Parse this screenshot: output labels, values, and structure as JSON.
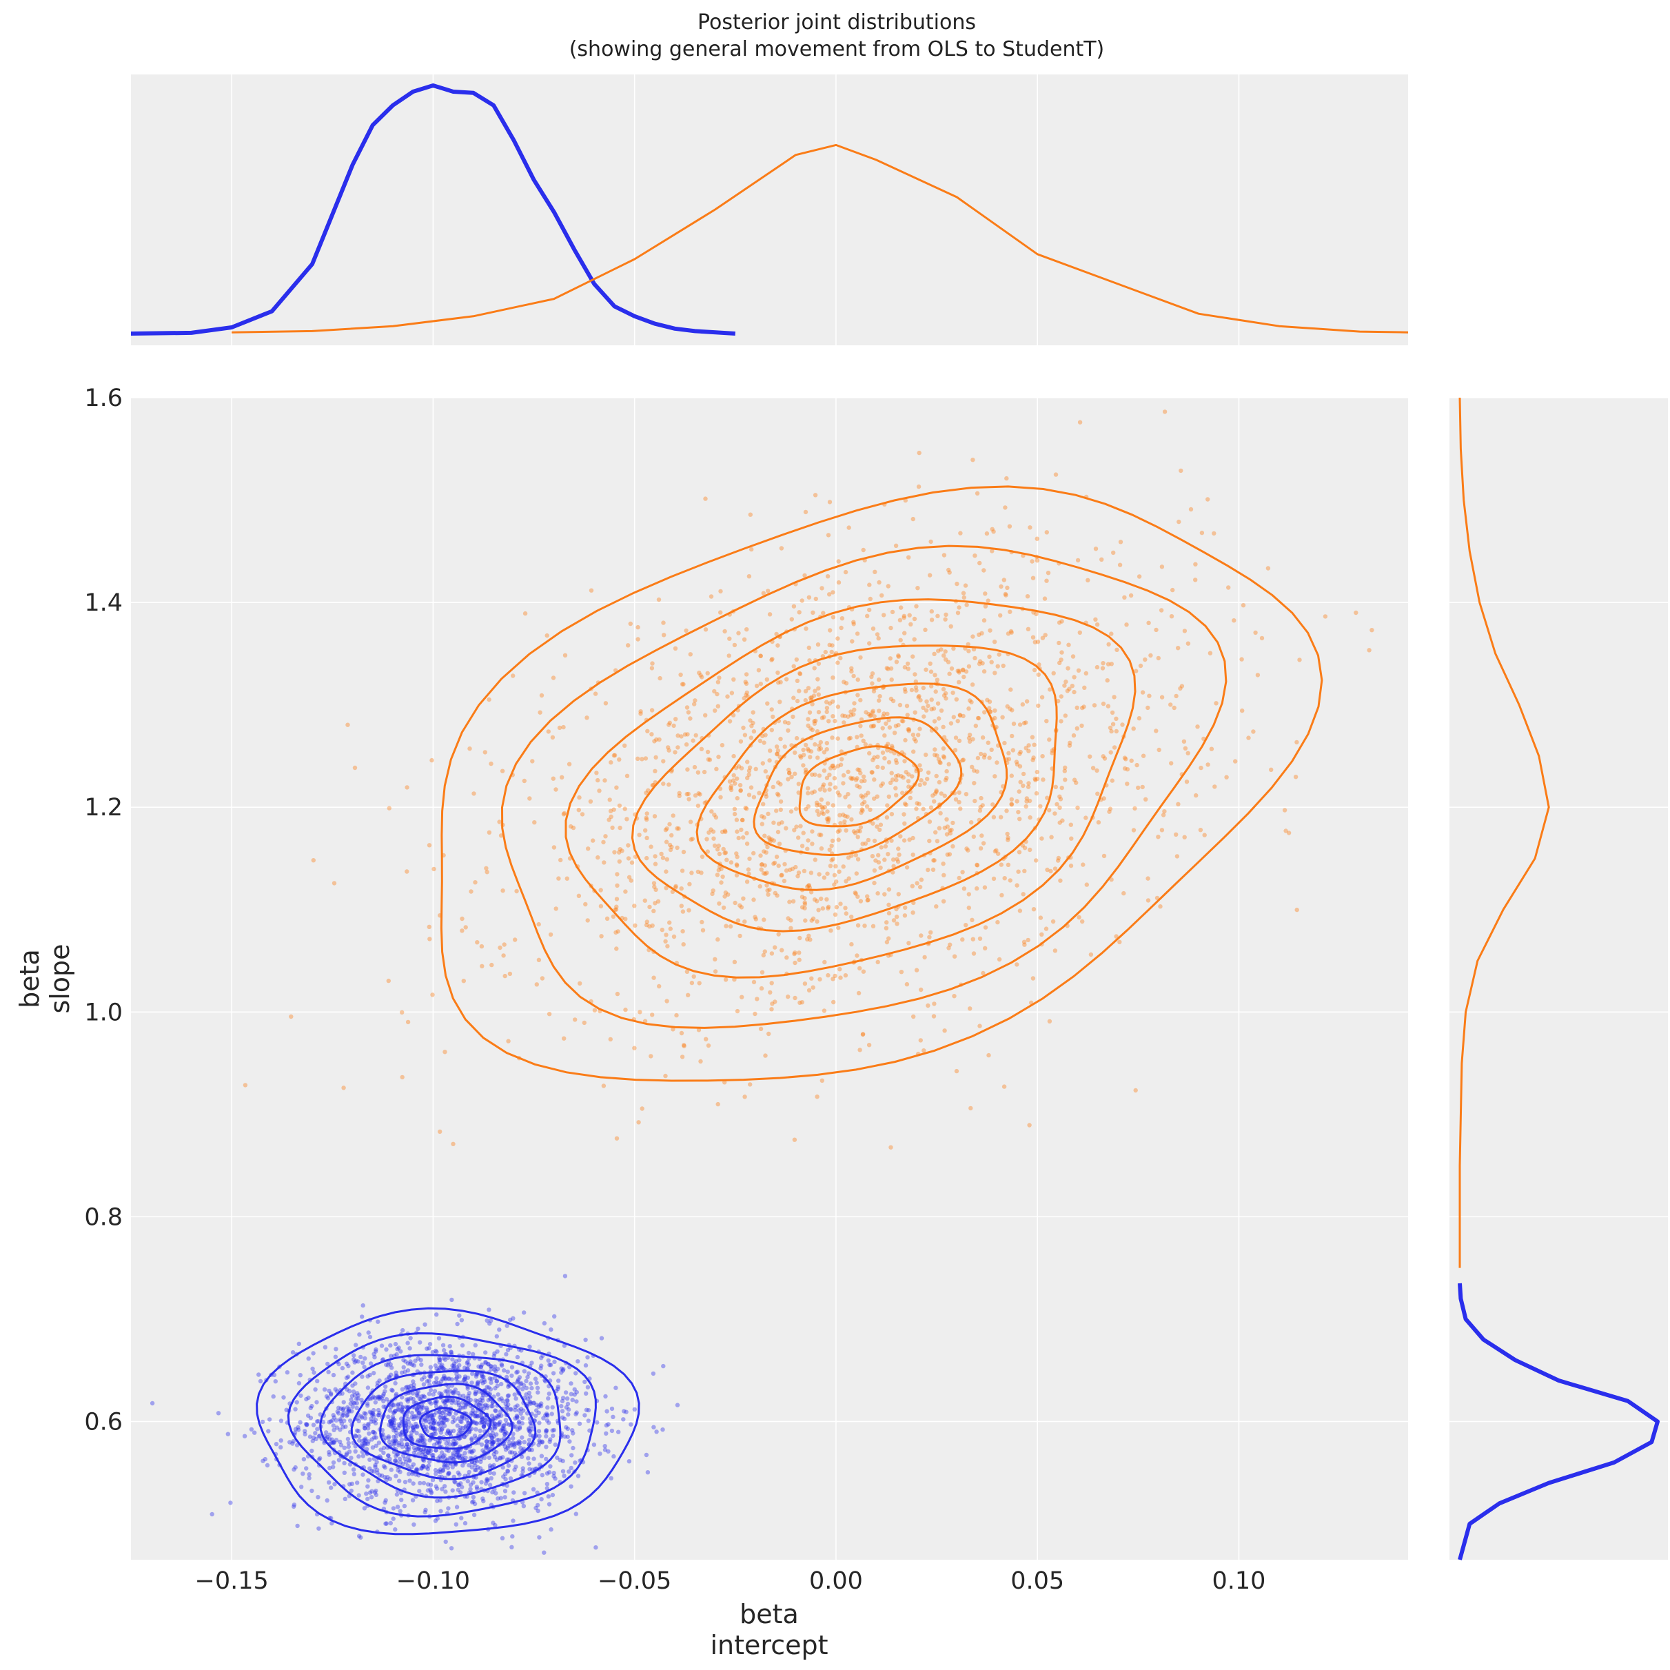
{
  "chart_data": {
    "type": "scatter",
    "title": "Posterior joint distributions",
    "subtitle": "(showing general movement from OLS to StudentT)",
    "xlabel": [
      "beta",
      "intercept"
    ],
    "ylabel": [
      "beta",
      "slope"
    ],
    "xlim": [
      -0.175,
      0.142
    ],
    "ylim": [
      0.465,
      1.6
    ],
    "xticks": [
      -0.15,
      -0.1,
      -0.05,
      0.0,
      0.05,
      0.1
    ],
    "xtick_labels": [
      "−0.15",
      "−0.10",
      "−0.05",
      "0.00",
      "0.05",
      "0.10"
    ],
    "yticks": [
      0.6,
      0.8,
      1.0,
      1.2,
      1.4,
      1.6
    ],
    "ytick_labels": [
      "0.6",
      "0.8",
      "1.0",
      "1.2",
      "1.4",
      "1.6"
    ],
    "grid": true,
    "colors": {
      "background": "#eeeeee",
      "grid": "#ffffff",
      "ols": "#2a2eec",
      "studentt": "#fa7c17"
    },
    "series": [
      {
        "color": "#2a2eec",
        "center": {
          "x": -0.097,
          "y": 0.598
        },
        "spread": {
          "x": 0.018,
          "y": 0.042
        },
        "n_points": 2000,
        "marginal_x": {
          "x": [
            -0.175,
            -0.16,
            -0.15,
            -0.14,
            -0.13,
            -0.12,
            -0.115,
            -0.11,
            -0.105,
            -0.1,
            -0.095,
            -0.09,
            -0.085,
            -0.08,
            -0.075,
            -0.07,
            -0.065,
            -0.06,
            -0.055,
            -0.05,
            -0.045,
            -0.04,
            -0.035,
            -0.025
          ],
          "density": [
            0.0,
            0.003,
            0.025,
            0.09,
            0.28,
            0.68,
            0.84,
            0.92,
            0.975,
            1.0,
            0.975,
            0.97,
            0.92,
            0.78,
            0.62,
            0.49,
            0.34,
            0.2,
            0.11,
            0.07,
            0.04,
            0.02,
            0.01,
            0.0
          ]
        },
        "marginal_y": {
          "y": [
            0.465,
            0.5,
            0.52,
            0.54,
            0.56,
            0.58,
            0.6,
            0.62,
            0.64,
            0.66,
            0.68,
            0.7,
            0.72,
            0.735
          ],
          "density": [
            0.0,
            0.05,
            0.2,
            0.45,
            0.78,
            0.97,
            1.0,
            0.85,
            0.5,
            0.28,
            0.12,
            0.03,
            0.005,
            0.0
          ]
        }
      },
      {
        "color": "#fa7c17",
        "center": {
          "x": 0.005,
          "y": 1.22
        },
        "spread": {
          "x": 0.042,
          "y": 0.105
        },
        "n_points": 2000,
        "marginal_x": {
          "x": [
            -0.15,
            -0.13,
            -0.11,
            -0.09,
            -0.07,
            -0.05,
            -0.03,
            -0.01,
            0.0,
            0.01,
            0.03,
            0.05,
            0.07,
            0.09,
            0.11,
            0.13,
            0.142
          ],
          "density": [
            0.005,
            0.01,
            0.03,
            0.07,
            0.14,
            0.3,
            0.5,
            0.72,
            0.76,
            0.7,
            0.55,
            0.32,
            0.2,
            0.08,
            0.03,
            0.008,
            0.005
          ]
        },
        "marginal_y": {
          "y": [
            0.75,
            0.85,
            0.95,
            1.0,
            1.05,
            1.1,
            1.15,
            1.2,
            1.25,
            1.3,
            1.35,
            1.4,
            1.45,
            1.5,
            1.55,
            1.6
          ],
          "density": [
            0.0,
            0.0,
            0.01,
            0.03,
            0.09,
            0.22,
            0.38,
            0.45,
            0.4,
            0.3,
            0.18,
            0.1,
            0.05,
            0.02,
            0.005,
            0.0
          ]
        }
      }
    ]
  }
}
